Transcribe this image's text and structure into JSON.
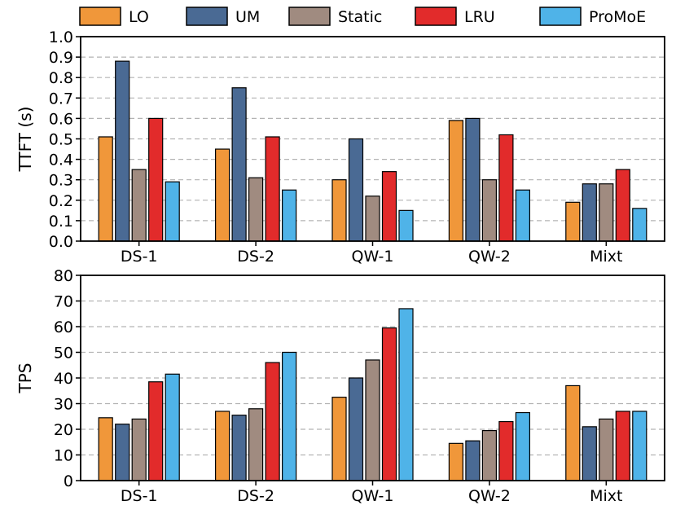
{
  "legend": [
    {
      "name": "LO",
      "color": "#f0973a"
    },
    {
      "name": "UM",
      "color": "#4a6a94"
    },
    {
      "name": "Static",
      "color": "#a08b80"
    },
    {
      "name": "LRU",
      "color": "#e22b2b"
    },
    {
      "name": "ProMoE",
      "color": "#4fb3e8"
    }
  ],
  "chart_data": [
    {
      "type": "bar",
      "title": "",
      "xlabel": "",
      "ylabel": "TTFT (s)",
      "ylim": [
        0,
        1.0
      ],
      "yticks": [
        "0.0",
        "0.1",
        "0.2",
        "0.3",
        "0.4",
        "0.5",
        "0.6",
        "0.7",
        "0.8",
        "0.9",
        "1.0"
      ],
      "grid": true,
      "categories": [
        "DS-1",
        "DS-2",
        "QW-1",
        "QW-2",
        "Mixt"
      ],
      "series": [
        {
          "name": "LO",
          "values": [
            0.51,
            0.45,
            0.3,
            0.59,
            0.19
          ]
        },
        {
          "name": "UM",
          "values": [
            0.88,
            0.75,
            0.5,
            0.6,
            0.28
          ]
        },
        {
          "name": "Static",
          "values": [
            0.35,
            0.31,
            0.22,
            0.3,
            0.28
          ]
        },
        {
          "name": "LRU",
          "values": [
            0.6,
            0.51,
            0.34,
            0.52,
            0.35
          ]
        },
        {
          "name": "ProMoE",
          "values": [
            0.29,
            0.25,
            0.15,
            0.25,
            0.16
          ]
        }
      ]
    },
    {
      "type": "bar",
      "title": "",
      "xlabel": "",
      "ylabel": "TPS",
      "ylim": [
        0,
        80
      ],
      "yticks": [
        "0",
        "10",
        "20",
        "30",
        "40",
        "50",
        "60",
        "70",
        "80"
      ],
      "grid": true,
      "categories": [
        "DS-1",
        "DS-2",
        "QW-1",
        "QW-2",
        "Mixt"
      ],
      "series": [
        {
          "name": "LO",
          "values": [
            24.5,
            27,
            32.5,
            14.5,
            37
          ]
        },
        {
          "name": "UM",
          "values": [
            22,
            25.5,
            40,
            15.5,
            21
          ]
        },
        {
          "name": "Static",
          "values": [
            24,
            28,
            47,
            19.5,
            24
          ]
        },
        {
          "name": "LRU",
          "values": [
            38.5,
            46,
            59.5,
            23,
            27
          ]
        },
        {
          "name": "ProMoE",
          "values": [
            41.5,
            50,
            67,
            26.5,
            27
          ]
        }
      ]
    }
  ]
}
